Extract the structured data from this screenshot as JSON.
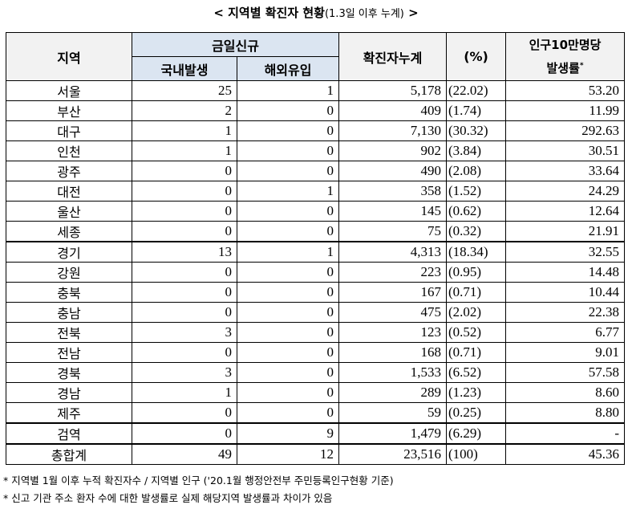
{
  "title": {
    "main": "< 지역별 확진자 현황",
    "sub": "(1.3일 이후 누계)",
    "end": " >"
  },
  "headers": {
    "region": "지역",
    "daily_new": "금일신규",
    "domestic": "국내발생",
    "overseas": "해외유입",
    "cumulative": "확진자누계",
    "percent": "(%)",
    "rate_line1": "인구10만명당",
    "rate_line2": "발생률",
    "rate_mark": "*"
  },
  "rows": [
    {
      "region": "서울",
      "domestic": "25",
      "overseas": "1",
      "cumulative": "5,178",
      "percent": "(22.02)",
      "rate": "53.20"
    },
    {
      "region": "부산",
      "domestic": "2",
      "overseas": "0",
      "cumulative": "409",
      "percent": "(1.74)",
      "rate": "11.99"
    },
    {
      "region": "대구",
      "domestic": "1",
      "overseas": "0",
      "cumulative": "7,130",
      "percent": "(30.32)",
      "rate": "292.63"
    },
    {
      "region": "인천",
      "domestic": "1",
      "overseas": "0",
      "cumulative": "902",
      "percent": "(3.84)",
      "rate": "30.51"
    },
    {
      "region": "광주",
      "domestic": "0",
      "overseas": "0",
      "cumulative": "490",
      "percent": "(2.08)",
      "rate": "33.64"
    },
    {
      "region": "대전",
      "domestic": "0",
      "overseas": "1",
      "cumulative": "358",
      "percent": "(1.52)",
      "rate": "24.29"
    },
    {
      "region": "울산",
      "domestic": "0",
      "overseas": "0",
      "cumulative": "145",
      "percent": "(0.62)",
      "rate": "12.64"
    },
    {
      "region": "세종",
      "domestic": "0",
      "overseas": "0",
      "cumulative": "75",
      "percent": "(0.32)",
      "rate": "21.91"
    },
    {
      "region": "경기",
      "domestic": "13",
      "overseas": "1",
      "cumulative": "4,313",
      "percent": "(18.34)",
      "rate": "32.55"
    },
    {
      "region": "강원",
      "domestic": "0",
      "overseas": "0",
      "cumulative": "223",
      "percent": "(0.95)",
      "rate": "14.48"
    },
    {
      "region": "충북",
      "domestic": "0",
      "overseas": "0",
      "cumulative": "167",
      "percent": "(0.71)",
      "rate": "10.44"
    },
    {
      "region": "충남",
      "domestic": "0",
      "overseas": "0",
      "cumulative": "475",
      "percent": "(2.02)",
      "rate": "22.38"
    },
    {
      "region": "전북",
      "domestic": "3",
      "overseas": "0",
      "cumulative": "123",
      "percent": "(0.52)",
      "rate": "6.77"
    },
    {
      "region": "전남",
      "domestic": "0",
      "overseas": "0",
      "cumulative": "168",
      "percent": "(0.71)",
      "rate": "9.01"
    },
    {
      "region": "경북",
      "domestic": "3",
      "overseas": "0",
      "cumulative": "1,533",
      "percent": "(6.52)",
      "rate": "57.58"
    },
    {
      "region": "경남",
      "domestic": "1",
      "overseas": "0",
      "cumulative": "289",
      "percent": "(1.23)",
      "rate": "8.60"
    },
    {
      "region": "제주",
      "domestic": "0",
      "overseas": "0",
      "cumulative": "59",
      "percent": "(0.25)",
      "rate": "8.80"
    },
    {
      "region": "검역",
      "domestic": "0",
      "overseas": "9",
      "cumulative": "1,479",
      "percent": "(6.29)",
      "rate": "-"
    },
    {
      "region": "총합계",
      "domestic": "49",
      "overseas": "12",
      "cumulative": "23,516",
      "percent": "(100)",
      "rate": "45.36"
    }
  ],
  "notes": [
    "* 지역별 1월 이후 누적 확진자수 / 지역별 인구 ('20.1월 행정안전부 주민등록인구현황 기준)",
    "* 신고 기관 주소 환자 수에 대한 발생률로 실제 해당지역 발생률과 차이가 있음"
  ]
}
